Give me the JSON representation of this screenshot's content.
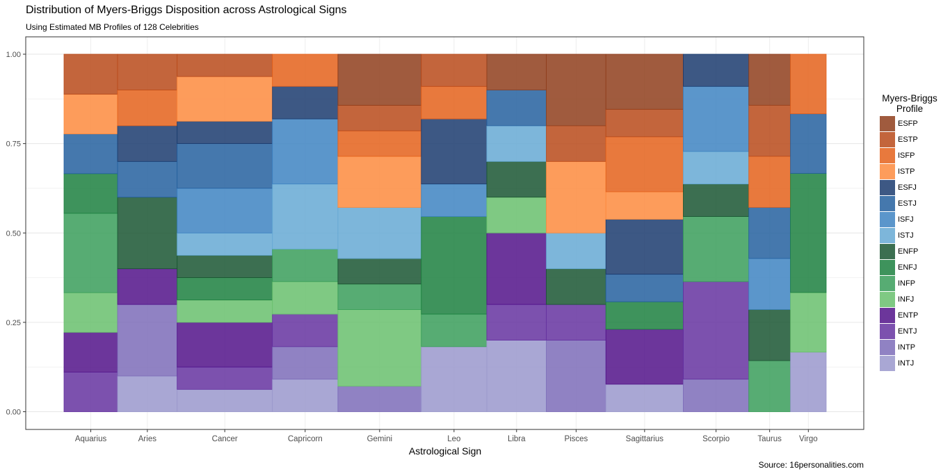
{
  "title": "Distribution of Myers-Briggs Disposition across Astrological Signs",
  "subtitle": "Using Estimated MB Profiles of 128 Celebrities",
  "caption": "Source: 16personalities.com",
  "legend": {
    "title_line1": "Myers-Briggs",
    "title_line2": "Profile"
  },
  "colors": {
    "ESFP": "#8f3e1c",
    "ESTP": "#b84a1a",
    "ISFP": "#e4611b",
    "ISTP": "#fd8b3e",
    "ESFJ": "#1b3b6e",
    "ESTJ": "#24609f",
    "ISFJ": "#3e84c2",
    "ISTJ": "#66a9d4",
    "ENFP": "#1a5632",
    "ENFJ": "#1c803f",
    "INFP": "#3a9e5a",
    "INFJ": "#69c06d",
    "ENTP": "#52138a",
    "ENTJ": "#6532a0",
    "INTP": "#7d6cb8",
    "INTJ": "#9a98cc"
  },
  "chart_data": {
    "type": "bar",
    "subtype": "mosaic",
    "title": "Distribution of Myers-Briggs Disposition across Astrological Signs",
    "subtitle": "Using Estimated MB Profiles of 128 Celebrities",
    "xlabel": "Astrological Sign",
    "ylabel": "",
    "ylim": [
      0,
      1
    ],
    "y_ticks": [
      "0.00",
      "0.25",
      "0.50",
      "0.75",
      "1.00"
    ],
    "legend_position": "right",
    "grid": true,
    "stack_order_bottom_to_top": [
      "INTJ",
      "INTP",
      "ENTJ",
      "ENTP",
      "INFJ",
      "INFP",
      "ENFJ",
      "ENFP",
      "ISTJ",
      "ISFJ",
      "ESTJ",
      "ESFJ",
      "ISTP",
      "ISFP",
      "ESTP",
      "ESFP"
    ],
    "categories": [
      "Aquarius",
      "Aries",
      "Cancer",
      "Capricorn",
      "Gemini",
      "Leo",
      "Libra",
      "Pisces",
      "Sagittarius",
      "Scorpio",
      "Taurus",
      "Virgo"
    ],
    "counts": [
      9,
      10,
      16,
      11,
      14,
      11,
      10,
      10,
      13,
      11,
      7,
      6
    ],
    "bars": [
      {
        "sign": "Aquarius",
        "segments": [
          [
            "ENTJ",
            0.111
          ],
          [
            "ENTP",
            0.111
          ],
          [
            "INFJ",
            0.111
          ],
          [
            "INFP",
            0.222
          ],
          [
            "ENFJ",
            0.111
          ],
          [
            "ESTJ",
            0.111
          ],
          [
            "ISTP",
            0.111
          ],
          [
            "ESTP",
            0.112
          ]
        ]
      },
      {
        "sign": "Aries",
        "segments": [
          [
            "INTJ",
            0.1
          ],
          [
            "INTP",
            0.2
          ],
          [
            "ENTP",
            0.1
          ],
          [
            "ENFP",
            0.2
          ],
          [
            "ESTJ",
            0.1
          ],
          [
            "ESFJ",
            0.1
          ],
          [
            "ISFP",
            0.1
          ],
          [
            "ESTP",
            0.1
          ]
        ]
      },
      {
        "sign": "Cancer",
        "segments": [
          [
            "INTJ",
            0.0625
          ],
          [
            "ENTJ",
            0.0625
          ],
          [
            "ENTP",
            0.125
          ],
          [
            "INFJ",
            0.0625
          ],
          [
            "ENFJ",
            0.0625
          ],
          [
            "ENFP",
            0.0625
          ],
          [
            "ISTJ",
            0.0625
          ],
          [
            "ISFJ",
            0.125
          ],
          [
            "ESTJ",
            0.125
          ],
          [
            "ESFJ",
            0.0625
          ],
          [
            "ISTP",
            0.125
          ],
          [
            "ESTP",
            0.0625
          ]
        ]
      },
      {
        "sign": "Capricorn",
        "segments": [
          [
            "INTJ",
            0.091
          ],
          [
            "INTP",
            0.091
          ],
          [
            "ENTJ",
            0.091
          ],
          [
            "INFJ",
            0.091
          ],
          [
            "INFP",
            0.091
          ],
          [
            "ISTJ",
            0.182
          ],
          [
            "ISFJ",
            0.182
          ],
          [
            "ESFJ",
            0.091
          ],
          [
            "ISFP",
            0.09
          ]
        ]
      },
      {
        "sign": "Gemini",
        "segments": [
          [
            "INTP",
            0.0714
          ],
          [
            "INFJ",
            0.2143
          ],
          [
            "INFP",
            0.0714
          ],
          [
            "ENFP",
            0.0714
          ],
          [
            "ISTJ",
            0.1429
          ],
          [
            "ISTP",
            0.1429
          ],
          [
            "ISFP",
            0.0714
          ],
          [
            "ESTP",
            0.0714
          ],
          [
            "ESFP",
            0.1429
          ]
        ]
      },
      {
        "sign": "Leo",
        "segments": [
          [
            "INTJ",
            0.182
          ],
          [
            "INFP",
            0.091
          ],
          [
            "ENFJ",
            0.273
          ],
          [
            "ISFJ",
            0.091
          ],
          [
            "ESFJ",
            0.182
          ],
          [
            "ISFP",
            0.091
          ],
          [
            "ESTP",
            0.09
          ]
        ]
      },
      {
        "sign": "Libra",
        "segments": [
          [
            "INTJ",
            0.2
          ],
          [
            "ENTJ",
            0.1
          ],
          [
            "ENTP",
            0.2
          ],
          [
            "INFJ",
            0.1
          ],
          [
            "ENFP",
            0.1
          ],
          [
            "ISTJ",
            0.1
          ],
          [
            "ESTJ",
            0.1
          ],
          [
            "ESFP",
            0.1
          ]
        ]
      },
      {
        "sign": "Pisces",
        "segments": [
          [
            "INTP",
            0.2
          ],
          [
            "ENTJ",
            0.1
          ],
          [
            "ENFP",
            0.1
          ],
          [
            "ISTJ",
            0.1
          ],
          [
            "ISTP",
            0.2
          ],
          [
            "ESTP",
            0.1
          ],
          [
            "ESFP",
            0.2
          ]
        ]
      },
      {
        "sign": "Sagittarius",
        "segments": [
          [
            "INTJ",
            0.0769
          ],
          [
            "ENTP",
            0.1538
          ],
          [
            "ENFJ",
            0.0769
          ],
          [
            "ESTJ",
            0.0769
          ],
          [
            "ESFJ",
            0.1538
          ],
          [
            "ISTP",
            0.0769
          ],
          [
            "ISFP",
            0.1538
          ],
          [
            "ESTP",
            0.0769
          ],
          [
            "ESFP",
            0.1541
          ]
        ]
      },
      {
        "sign": "Scorpio",
        "segments": [
          [
            "INTP",
            0.091
          ],
          [
            "ENTJ",
            0.273
          ],
          [
            "INFP",
            0.182
          ],
          [
            "ENFP",
            0.091
          ],
          [
            "ISTJ",
            0.091
          ],
          [
            "ISFJ",
            0.182
          ],
          [
            "ESFJ",
            0.09
          ]
        ]
      },
      {
        "sign": "Taurus",
        "segments": [
          [
            "INFP",
            0.1429
          ],
          [
            "ENFP",
            0.1429
          ],
          [
            "ISFJ",
            0.1429
          ],
          [
            "ESTJ",
            0.1429
          ],
          [
            "ISFP",
            0.1429
          ],
          [
            "ESTP",
            0.1429
          ],
          [
            "ESFP",
            0.1426
          ]
        ]
      },
      {
        "sign": "Virgo",
        "segments": [
          [
            "INTJ",
            0.1667
          ],
          [
            "INFJ",
            0.1667
          ],
          [
            "ENFJ",
            0.3333
          ],
          [
            "ESTJ",
            0.1667
          ],
          [
            "ISFP",
            0.1666
          ]
        ]
      }
    ]
  }
}
